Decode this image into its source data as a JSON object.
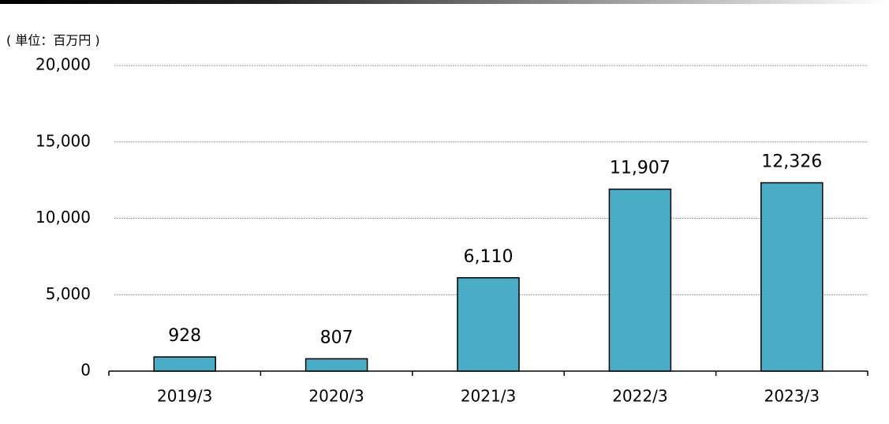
{
  "chart_data": {
    "type": "bar",
    "unit_label": "( 単位：百万円 )",
    "categories": [
      "2019/3",
      "2020/3",
      "2021/3",
      "2022/3",
      "2023/3"
    ],
    "values": [
      928,
      807,
      6110,
      11907,
      12326
    ],
    "value_labels": [
      "928",
      "807",
      "6,110",
      "11,907",
      "12,326"
    ],
    "color": "#4bacc6",
    "ylim": [
      0,
      20000
    ],
    "yticks": [
      0,
      {
        "value": 5000,
        "label": "5,000"
      },
      {
        "value": 10000,
        "label": "10,000"
      },
      {
        "value": 15000,
        "label": "15,000"
      },
      {
        "value": 20000,
        "label": "20,000"
      }
    ],
    "grid": true
  }
}
